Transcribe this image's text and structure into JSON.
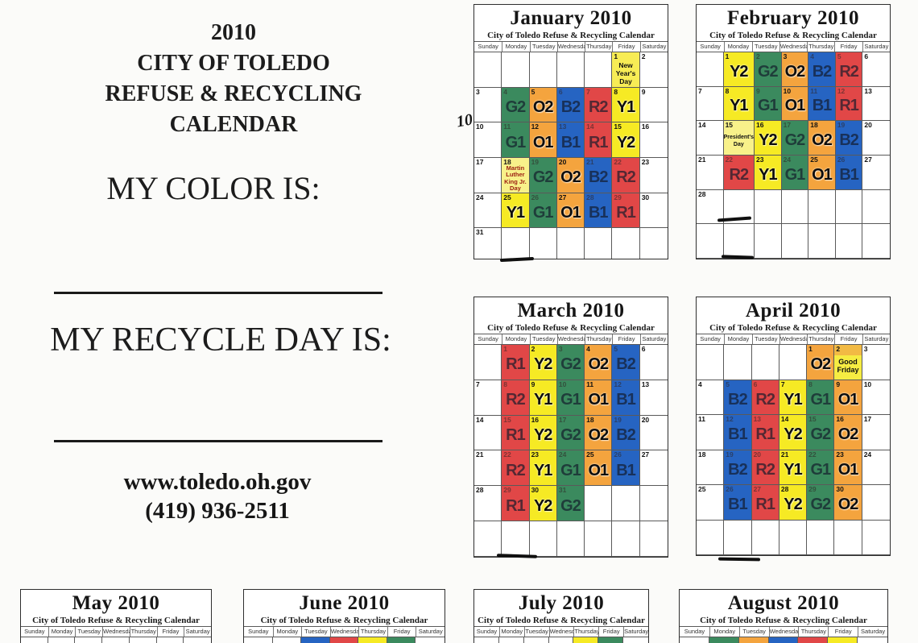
{
  "left_panel": {
    "title_lines": [
      "2010",
      "CITY OF TOLEDO",
      "REFUSE & RECYCLING",
      "CALENDAR"
    ],
    "my_color_label": "MY COLOR IS:",
    "my_recycle_label": "MY RECYCLE DAY IS:",
    "website": "www.toledo.oh.gov",
    "phone": "(419) 936-2511",
    "handwritten_note": "10"
  },
  "calendar_subtitle": "City of Toledo Refuse & Recycling Calendar",
  "day_names": [
    "Sunday",
    "Monday",
    "Tuesday",
    "Wednesday",
    "Thursday",
    "Friday",
    "Saturday"
  ],
  "color_key": {
    "G": "#3b8a5e",
    "O": "#f4a43e",
    "B": "#2664c2",
    "R": "#e14747",
    "Y": "#f6ea24"
  },
  "months": [
    {
      "id": "january",
      "title": "January 2010",
      "first_dow": 5,
      "num_days": 31,
      "rows": 6,
      "pickups": {
        "4": "G2",
        "5": "O2",
        "6": "B2",
        "7": "R2",
        "8": "Y1",
        "11": "G1",
        "12": "O1",
        "13": "B1",
        "14": "R1",
        "15": "Y2",
        "19": "G2",
        "20": "O2",
        "21": "B2",
        "22": "R2",
        "25": "Y1",
        "26": "G1",
        "27": "O1",
        "28": "B1",
        "29": "R1"
      },
      "holidays": {
        "1": {
          "style": "newyear",
          "lines": [
            "New",
            "Year's",
            "Day"
          ]
        },
        "18": {
          "style": "mlk",
          "lines": [
            "Martin",
            "Luther",
            "King Jr.",
            "Day"
          ]
        }
      }
    },
    {
      "id": "february",
      "title": "February 2010",
      "first_dow": 1,
      "num_days": 28,
      "rows": 6,
      "pickups": {
        "1": "Y2",
        "2": "G2",
        "3": "O2",
        "4": "B2",
        "5": "R2",
        "8": "Y1",
        "9": "G1",
        "10": "O1",
        "11": "B1",
        "12": "R1",
        "16": "Y2",
        "17": "G2",
        "18": "O2",
        "19": "B2",
        "22": "R2",
        "23": "Y1",
        "24": "G1",
        "25": "O1",
        "26": "B1"
      },
      "holidays": {
        "15": {
          "style": "presidents",
          "lines": [
            "President's",
            "Day"
          ]
        }
      }
    },
    {
      "id": "march",
      "title": "March 2010",
      "first_dow": 1,
      "num_days": 31,
      "rows": 6,
      "pickups": {
        "1": "R1",
        "2": "Y2",
        "3": "G2",
        "4": "O2",
        "5": "B2",
        "8": "R2",
        "9": "Y1",
        "10": "G1",
        "11": "O1",
        "12": "B1",
        "15": "R1",
        "16": "Y2",
        "17": "G2",
        "18": "O2",
        "19": "B2",
        "22": "R2",
        "23": "Y1",
        "24": "G1",
        "25": "O1",
        "26": "B1",
        "29": "R1",
        "30": "Y2",
        "31": "G2"
      },
      "holidays": {}
    },
    {
      "id": "april",
      "title": "April 2010",
      "first_dow": 4,
      "num_days": 30,
      "rows": 6,
      "pickups": {
        "1": "O2",
        "5": "B2",
        "6": "R2",
        "7": "Y1",
        "8": "G1",
        "9": "O1",
        "12": "B1",
        "13": "R1",
        "14": "Y2",
        "15": "G2",
        "16": "O2",
        "19": "B2",
        "20": "R2",
        "21": "Y1",
        "22": "G1",
        "23": "O1",
        "26": "B1",
        "27": "R1",
        "28": "Y2",
        "29": "G2",
        "30": "O2"
      },
      "holidays": {
        "2": {
          "style": "goodfriday",
          "lines": [
            "Good",
            "Friday"
          ]
        }
      }
    }
  ],
  "partial_months": [
    {
      "id": "may",
      "title": "May 2010",
      "slivers": []
    },
    {
      "id": "june",
      "title": "June 2010",
      "slivers": [
        {
          "col": 2,
          "color": "B"
        },
        {
          "col": 3,
          "color": "R"
        },
        {
          "col": 4,
          "color": "Y"
        },
        {
          "col": 5,
          "color": "G"
        }
      ]
    },
    {
      "id": "july",
      "title": "July 2010",
      "slivers": [
        {
          "col": 4,
          "color": "Y"
        },
        {
          "col": 5,
          "color": "G"
        }
      ]
    },
    {
      "id": "august",
      "title": "August 2010",
      "slivers": [
        {
          "col": 1,
          "color": "G"
        },
        {
          "col": 2,
          "color": "O"
        },
        {
          "col": 3,
          "color": "B"
        },
        {
          "col": 4,
          "color": "R"
        },
        {
          "col": 5,
          "color": "Y"
        }
      ]
    }
  ]
}
